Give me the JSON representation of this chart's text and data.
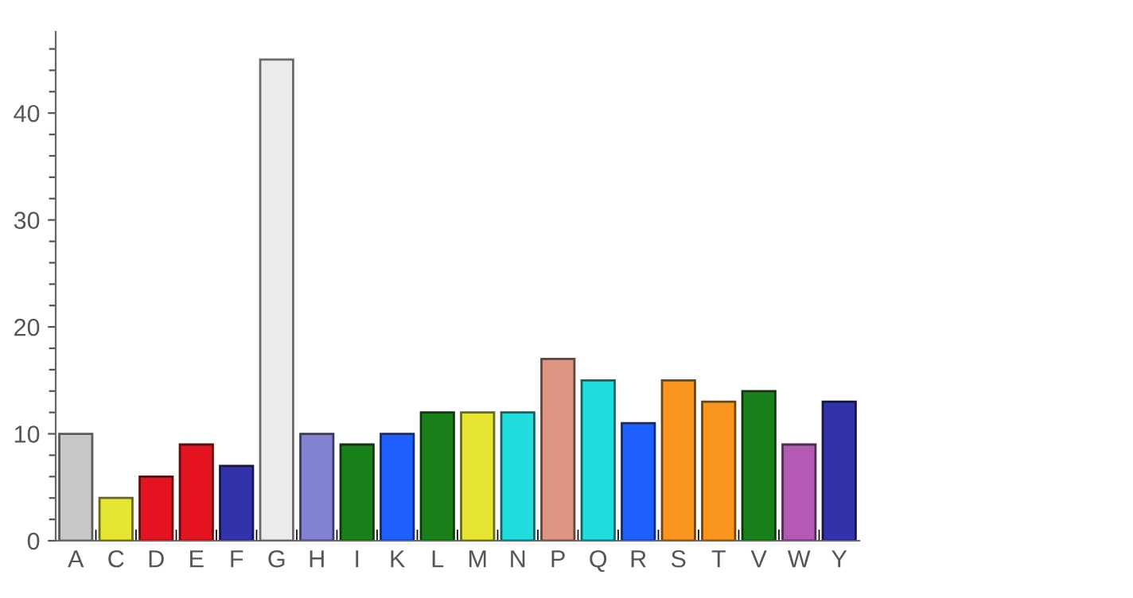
{
  "chart_data": {
    "type": "bar",
    "categories": [
      "A",
      "C",
      "D",
      "E",
      "F",
      "G",
      "H",
      "I",
      "K",
      "L",
      "M",
      "N",
      "P",
      "Q",
      "R",
      "S",
      "T",
      "V",
      "W",
      "Y"
    ],
    "values": [
      10,
      4,
      6,
      9,
      7,
      45,
      10,
      9,
      10,
      12,
      12,
      12,
      17,
      15,
      11,
      15,
      13,
      14,
      9,
      13
    ],
    "colors": [
      "#c8c8c8",
      "#e6e632",
      "#e61420",
      "#e61420",
      "#3232aa",
      "#ebebeb",
      "#8282d2",
      "#1a801a",
      "#1e60ff",
      "#1a801a",
      "#e6e632",
      "#22dddd",
      "#dc9682",
      "#22dddd",
      "#1e60ff",
      "#fa9620",
      "#fa9620",
      "#1a801a",
      "#b45ab4",
      "#3232aa"
    ],
    "ylim": [
      0,
      47.6
    ],
    "yticks": [
      0,
      {
        "value": 2,
        "label": null
      },
      {
        "value": 4,
        "label": null
      },
      {
        "value": 6,
        "label": null
      },
      {
        "value": 8,
        "label": null
      },
      10,
      {
        "value": 12,
        "label": null
      },
      {
        "value": 14,
        "label": null
      },
      {
        "value": 16,
        "label": null
      },
      {
        "value": 18,
        "label": null
      },
      20,
      {
        "value": 22,
        "label": null
      },
      {
        "value": 24,
        "label": null
      },
      {
        "value": 26,
        "label": null
      },
      {
        "value": 28,
        "label": null
      },
      30,
      {
        "value": 32,
        "label": null
      },
      {
        "value": 34,
        "label": null
      },
      {
        "value": 36,
        "label": null
      },
      {
        "value": 38,
        "label": null
      },
      40,
      {
        "value": 42,
        "label": null
      },
      {
        "value": 44,
        "label": null
      },
      {
        "value": 46,
        "label": null
      }
    ],
    "grid": false
  }
}
